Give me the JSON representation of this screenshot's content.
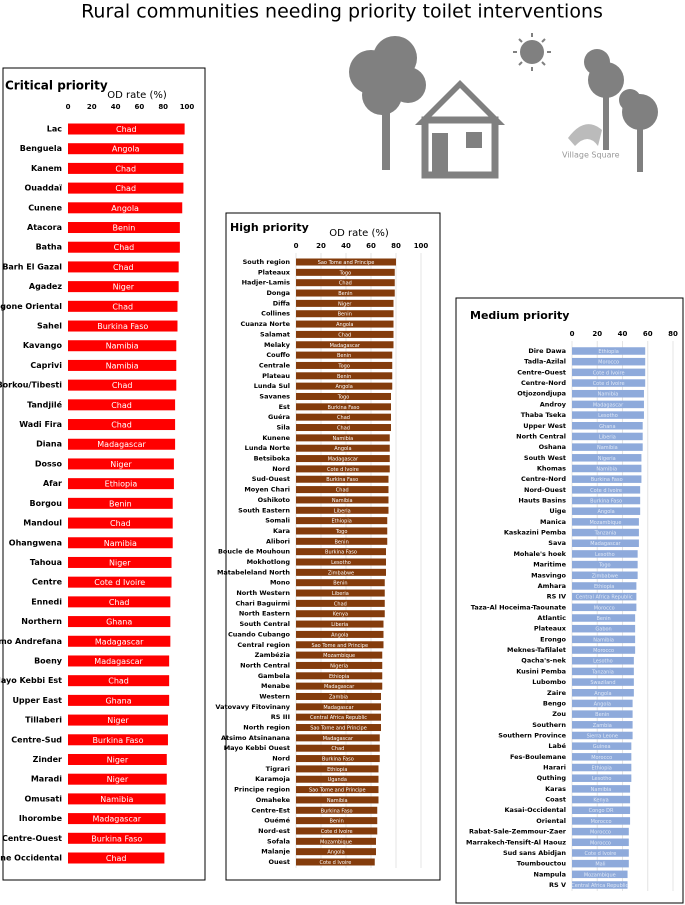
{
  "title": "Rural communities needing priority toilet interventions",
  "logo_text": "Village Square",
  "chart_data": [
    {
      "type": "bar",
      "title": "Critical priority",
      "xlabel": "OD rate (%)",
      "color": "#ff0000",
      "grid": false,
      "xlim": [
        0,
        100
      ],
      "xticks": [
        0,
        20,
        40,
        60,
        80,
        100
      ],
      "categories": [
        "Lac",
        "Benguela",
        "Kanem",
        "Ouaddaï",
        "Cunene",
        "Atacora",
        "Batha",
        "Barh El Gazal",
        "Agadez",
        "Logone Oriental",
        "Sahel",
        "Kavango",
        "Caprivi",
        "Borkou/Tibesti",
        "Tandjilé",
        "Wadi Fira",
        "Diana",
        "Dosso",
        "Afar",
        "Borgou",
        "Mandoul",
        "Ohangwena",
        "Tahoua",
        "Centre",
        "Ennedi",
        "Northern",
        "Atsimo Andrefana",
        "Boeny",
        "Mayo Kebbi Est",
        "Upper East",
        "Tillaberi",
        "Centre-Sud",
        "Zinder",
        "Maradi",
        "Omusati",
        "Ihorombe",
        "Centre-Ouest",
        "Logone Occidental"
      ],
      "countries": [
        "Chad",
        "Angola",
        "Chad",
        "Chad",
        "Angola",
        "Benin",
        "Chad",
        "Chad",
        "Niger",
        "Chad",
        "Burkina Faso",
        "Namibia",
        "Namibia",
        "Chad",
        "Chad",
        "Chad",
        "Madagascar",
        "Niger",
        "Ethiopia",
        "Benin",
        "Chad",
        "Namibia",
        "Niger",
        "Cote d Ivoire",
        "Chad",
        "Ghana",
        "Madagascar",
        "Madagascar",
        "Chad",
        "Ghana",
        "Niger",
        "Burkina Faso",
        "Niger",
        "Niger",
        "Namibia",
        "Madagascar",
        "Burkina Faso",
        "Chad"
      ],
      "values": [
        98,
        97,
        97,
        97,
        96,
        94,
        94,
        93,
        93,
        92,
        92,
        91,
        91,
        91,
        90,
        90,
        90,
        89,
        89,
        88,
        88,
        88,
        87,
        87,
        86,
        86,
        86,
        85,
        85,
        85,
        84,
        84,
        83,
        83,
        82,
        82,
        82,
        81
      ]
    },
    {
      "type": "bar",
      "title": "High priority",
      "xlabel": "OD rate (%)",
      "color": "#843c0c",
      "grid": true,
      "xlim": [
        0,
        100
      ],
      "xticks": [
        0,
        20,
        40,
        60,
        80,
        100
      ],
      "categories": [
        "South region",
        "Plateaux",
        "Hadjer-Lamis",
        "Donga",
        "Diffa",
        "Collines",
        "Cuanza Norte",
        "Salamat",
        "Melaky",
        "Couffo",
        "Centrale",
        "Plateau",
        "Lunda Sul",
        "Savanes",
        "Est",
        "Guéra",
        "Sila",
        "Kunene",
        "Lunda Norte",
        "Betsiboka",
        "Nord",
        "Sud-Ouest",
        "Moyen Chari",
        "Oshikoto",
        "South Eastern",
        "Somali",
        "Kara",
        "Alibori",
        "Boucle de Mouhoun",
        "Mokhotlong",
        "Matabeleland North",
        "Mono",
        "North Western",
        "Chari Baguirmi",
        "North Eastern",
        "South Central",
        "Cuando Cubango",
        "Central region",
        "Zambézia",
        "North Central",
        "Gambela",
        "Menabe",
        "Western",
        "Vatovavy Fitovinany",
        "RS III",
        "North region",
        "Atsimo Atsinanana",
        "Mayo Kebbi Ouest",
        "Nord",
        "Tigrari",
        "Karamoja",
        "Principe region",
        "Omaheke",
        "Centre-Est",
        "Ouémé",
        "Nord-est",
        "Sofala",
        "Malanje",
        "Ouest"
      ],
      "countries": [
        "Sao Tome and Principe",
        "Togo",
        "Chad",
        "Benin",
        "Niger",
        "Benin",
        "Angola",
        "Chad",
        "Madagascar",
        "Benin",
        "Togo",
        "Benin",
        "Angola",
        "Togo",
        "Burkina Faso",
        "Chad",
        "Chad",
        "Namibia",
        "Angola",
        "Madagascar",
        "Cote d Ivoire",
        "Burkina Faso",
        "Chad",
        "Namibia",
        "Liberia",
        "Ethiopia",
        "Togo",
        "Benin",
        "Burkina Faso",
        "Lesotho",
        "Zimbabwe",
        "Benin",
        "Liberia",
        "Chad",
        "Kenya",
        "Liberia",
        "Angola",
        "Sao Tome and Principe",
        "Mozambique",
        "Nigeria",
        "Ethiopia",
        "Madagascar",
        "Zambia",
        "Madagascar",
        "Central Africa Republic",
        "Sao Tome and Principe",
        "Madagascar",
        "Chad",
        "Burkina Faso",
        "Ethiopia",
        "Uganda",
        "Sao Tome and Principe",
        "Namibia",
        "Burkina Faso",
        "Benin",
        "Cote d Ivoire",
        "Mozambique",
        "Angola",
        "Cote d Ivoire"
      ],
      "values": [
        80,
        79,
        79,
        79,
        78,
        78,
        78,
        78,
        78,
        77,
        77,
        77,
        77,
        76,
        76,
        76,
        76,
        75,
        75,
        75,
        75,
        74,
        74,
        74,
        74,
        73,
        73,
        73,
        72,
        72,
        72,
        71,
        71,
        71,
        71,
        70,
        70,
        70,
        69,
        69,
        69,
        69,
        68,
        68,
        68,
        68,
        67,
        67,
        67,
        66,
        66,
        66,
        66,
        65,
        65,
        65,
        64,
        64,
        63
      ]
    },
    {
      "type": "bar",
      "title": "Medium priority",
      "color": "#8eaadb",
      "grid": true,
      "xlim": [
        0,
        80
      ],
      "xticks": [
        0,
        20,
        40,
        60,
        80
      ],
      "categories": [
        "Dire Dawa",
        "Tadla-Azilal",
        "Centre-Ouest",
        "Centre-Nord",
        "Otjozondjupa",
        "Androy",
        "Thaba Tseka",
        "Upper West",
        "North Central",
        "Oshana",
        "South West",
        "Khomas",
        "Centre-Nord",
        "Nord-Ouest",
        "Hauts Basins",
        "Uige",
        "Manica",
        "Kaskazini Pemba",
        "Sava",
        "Mohale's hoek",
        "Maritime",
        "Masvingo",
        "Amhara",
        "RS IV",
        "Taza-Al Hoceima-Taounate",
        "Atlantic",
        "Plateaux",
        "Erongo",
        "Meknes-Tafilalet",
        "Qacha's-nek",
        "Kusini Pemba",
        "Lubombo",
        "Zaire",
        "Bengo",
        "Zou",
        "Southern",
        "Southern Province",
        "Labé",
        "Fes-Boulemane",
        "Harari",
        "Quthing",
        "Karas",
        "Coast",
        "Kasai-Occidental",
        "Oriental",
        "Rabat-Sale-Zemmour-Zaer",
        "Marrakech-Tensift-Al Haouz",
        "Sud sans Abidjan",
        "Toumbouctou",
        "Nampula",
        "RS V"
      ],
      "countries": [
        "Ethiopia",
        "Morocco",
        "Cote d Ivoire",
        "Cote d Ivoire",
        "Namibia",
        "Madagascar",
        "Lesotho",
        "Ghana",
        "Liberia",
        "Namibia",
        "Nigeria",
        "Namibia",
        "Burkina Faso",
        "Cote d Ivoire",
        "Burkina Faso",
        "Angola",
        "Mozambique",
        "Tanzania",
        "Madagascar",
        "Lesotho",
        "Togo",
        "Zimbabwe",
        "Ethiopia",
        "Central Africa Republic",
        "Morocco",
        "Benin",
        "Gabon",
        "Namibia",
        "Morocco",
        "Lesotho",
        "Tanzania",
        "Swaziland",
        "Angola",
        "Angola",
        "Benin",
        "Zambia",
        "Sierra Leone",
        "Guinea",
        "Morocco",
        "Ethiopia",
        "Lesotho",
        "Namibia",
        "Kenya",
        "Congo DR",
        "Morocco",
        "Morocco",
        "Morocco",
        "Cote d Ivoire",
        "Mali",
        "Mozambique",
        "Central Africa Republic"
      ],
      "values": [
        58,
        58,
        58,
        58,
        57,
        57,
        57,
        56,
        56,
        56,
        55,
        55,
        55,
        54,
        54,
        54,
        53,
        53,
        53,
        52,
        52,
        52,
        51,
        51,
        51,
        50,
        50,
        50,
        50,
        49,
        49,
        49,
        49,
        48,
        48,
        48,
        48,
        47,
        47,
        47,
        47,
        46,
        46,
        46,
        46,
        45,
        45,
        45,
        45,
        44,
        44
      ]
    }
  ]
}
